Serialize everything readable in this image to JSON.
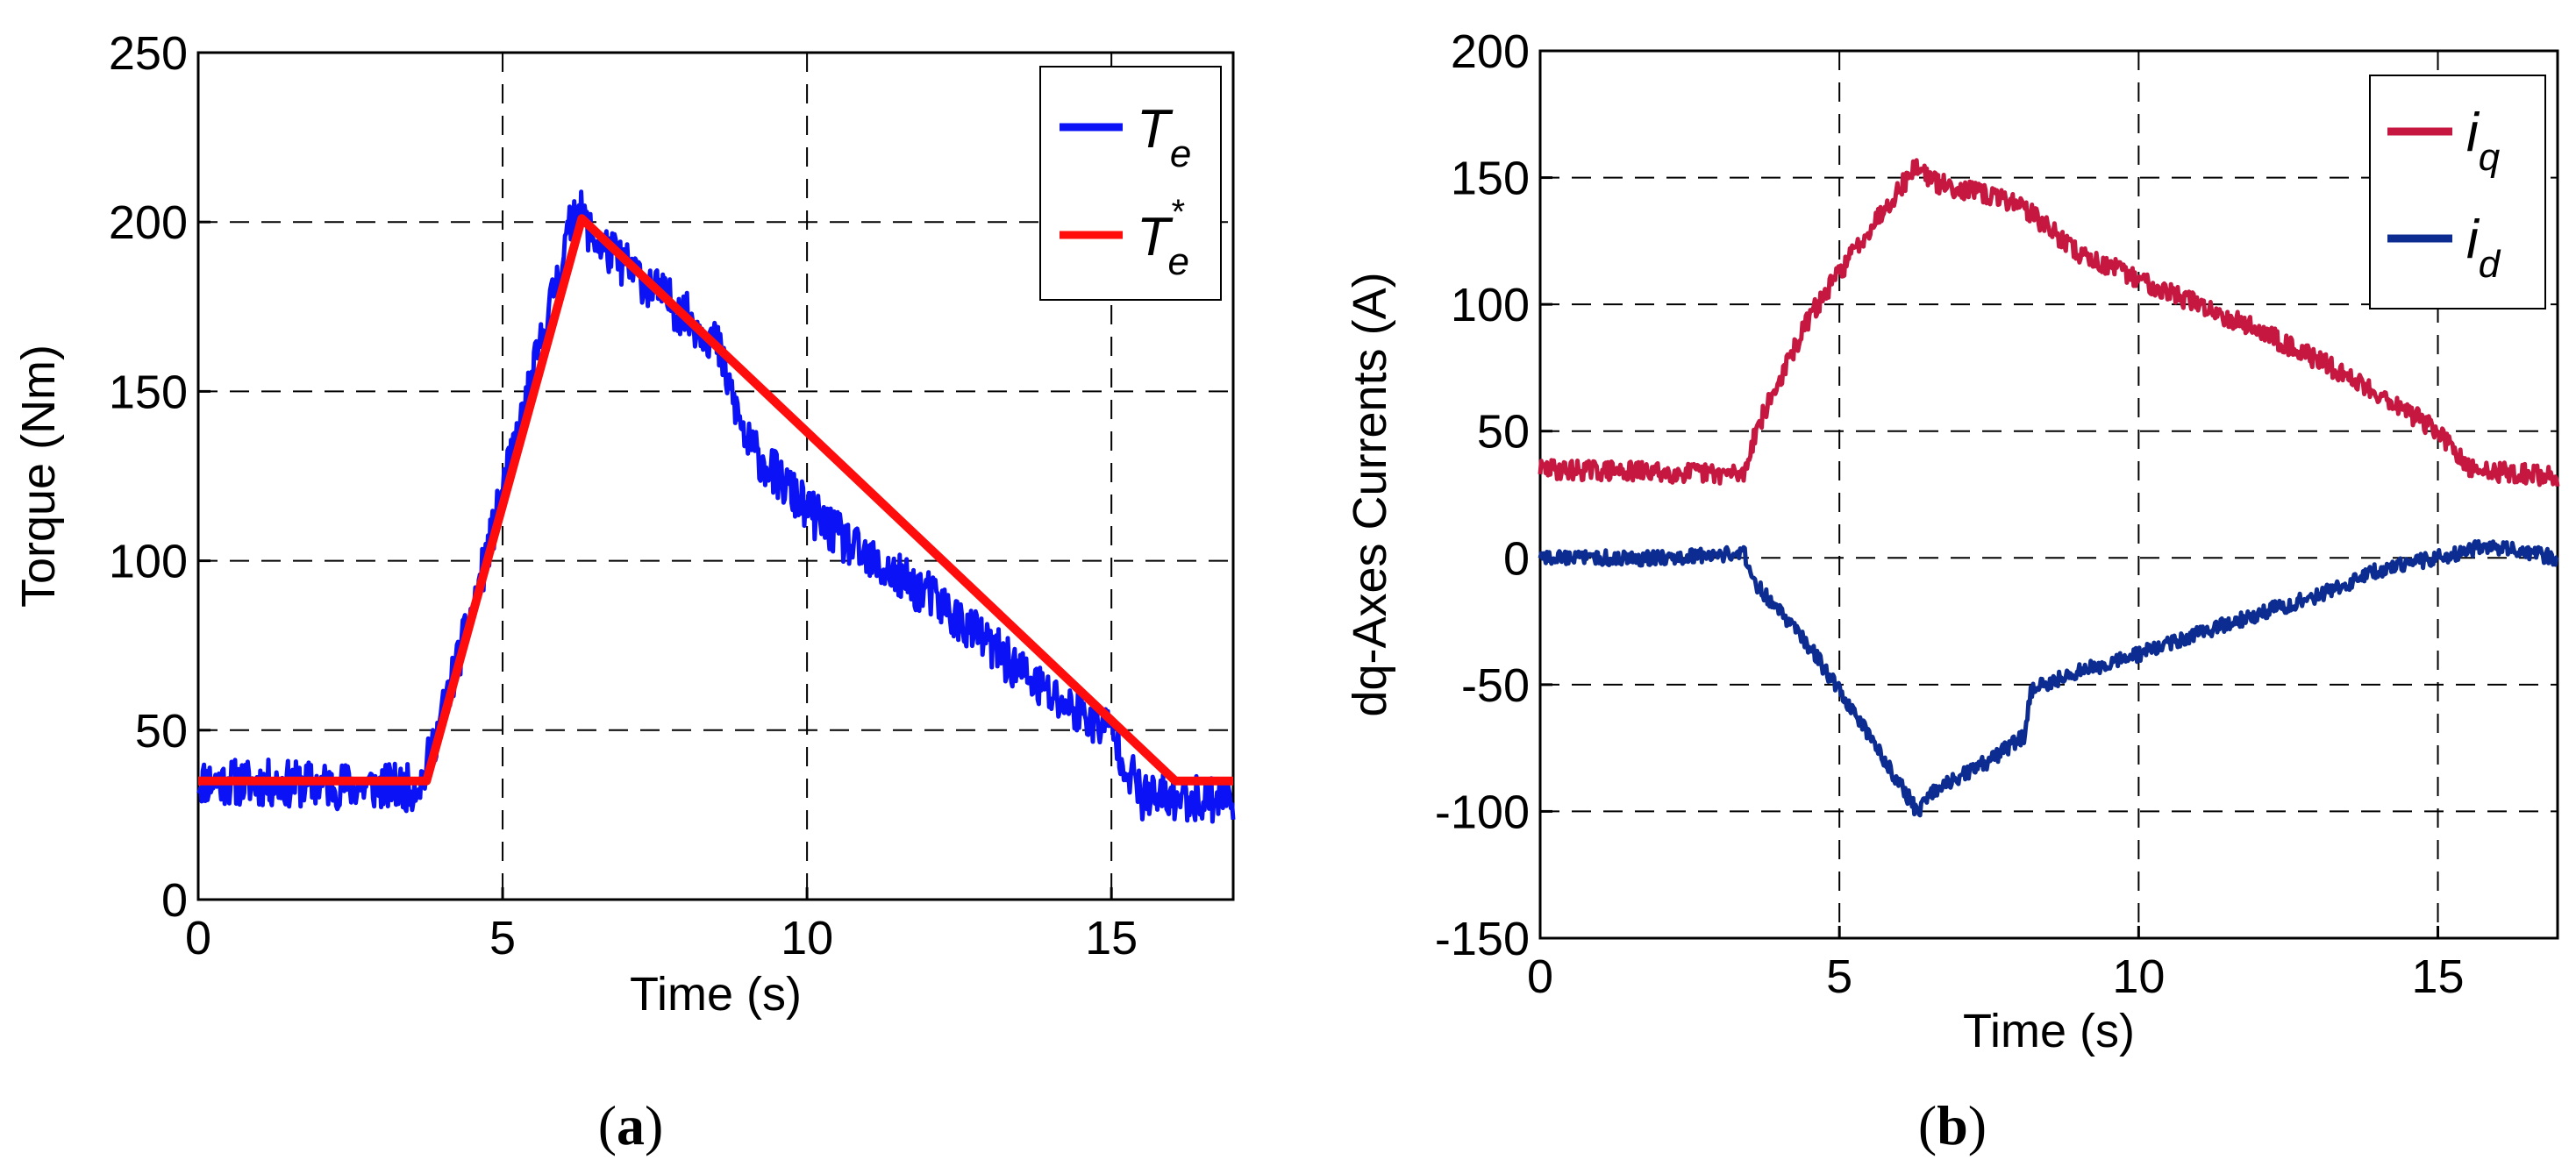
{
  "chart_data": [
    {
      "type": "line",
      "panel_label": "a",
      "xlabel": "Time (s)",
      "ylabel": "Torque (Nm)",
      "xlim": [
        0,
        17
      ],
      "ylim": [
        0,
        250
      ],
      "xticks": [
        0,
        5,
        10,
        15
      ],
      "yticks": [
        0,
        50,
        100,
        150,
        200,
        250
      ],
      "grid": true,
      "legend_position": "top-right",
      "series": [
        {
          "name": "T_e",
          "label_main": "T",
          "label_sub": "e",
          "label_sup": "",
          "color": "#0b12f5",
          "noise": 7,
          "x": [
            0,
            3.5,
            3.7,
            4.5,
            5.5,
            6.2,
            6.5,
            7.5,
            8.5,
            9,
            10,
            11,
            12,
            13,
            14,
            15,
            15.5,
            16,
            17
          ],
          "y": [
            35,
            33,
            36,
            85,
            155,
            205,
            195,
            180,
            165,
            135,
            115,
            100,
            90,
            75,
            60,
            50,
            30,
            30,
            30
          ]
        },
        {
          "name": "T_e*",
          "label_main": "T",
          "label_sub": "e",
          "label_sup": "*",
          "color": "#ff0d0d",
          "noise": 0,
          "x": [
            0,
            3.75,
            6.3,
            16.05,
            17
          ],
          "y": [
            35,
            35,
            201,
            35,
            35
          ]
        }
      ]
    },
    {
      "type": "line",
      "panel_label": "b",
      "xlabel": "Time (s)",
      "ylabel": "dq-Axes Currents (A)",
      "xlim": [
        0,
        17
      ],
      "ylim": [
        -150,
        200
      ],
      "xticks": [
        0,
        5,
        10,
        15
      ],
      "yticks": [
        -150,
        -100,
        -50,
        0,
        50,
        100,
        150,
        200
      ],
      "grid": true,
      "legend_position": "top-right",
      "series": [
        {
          "name": "i_q",
          "label_main": "i",
          "label_sub": "q",
          "label_sup": "",
          "color": "#c5173f",
          "noise": 4,
          "x": [
            0,
            3.4,
            3.6,
            4.5,
            5.5,
            6.3,
            6.6,
            8,
            9,
            10,
            11,
            12,
            13,
            14,
            15,
            15.5,
            17
          ],
          "y": [
            35,
            33,
            50,
            95,
            130,
            155,
            148,
            140,
            120,
            110,
            100,
            90,
            78,
            65,
            50,
            35,
            32
          ]
        },
        {
          "name": "i_d",
          "label_main": "i",
          "label_sub": "d",
          "label_sup": "",
          "color": "#0c2c91",
          "noise": 3,
          "x": [
            0,
            1.8,
            3.4,
            3.6,
            4.5,
            5.5,
            6.3,
            6.6,
            7.5,
            8.1,
            8.2,
            9,
            10,
            11,
            12,
            13,
            14,
            15,
            15.8,
            17
          ],
          "y": [
            0,
            0,
            2,
            -10,
            -35,
            -70,
            -100,
            -92,
            -80,
            -70,
            -52,
            -45,
            -38,
            -30,
            -22,
            -15,
            -5,
            0,
            5,
            0
          ]
        }
      ]
    }
  ]
}
